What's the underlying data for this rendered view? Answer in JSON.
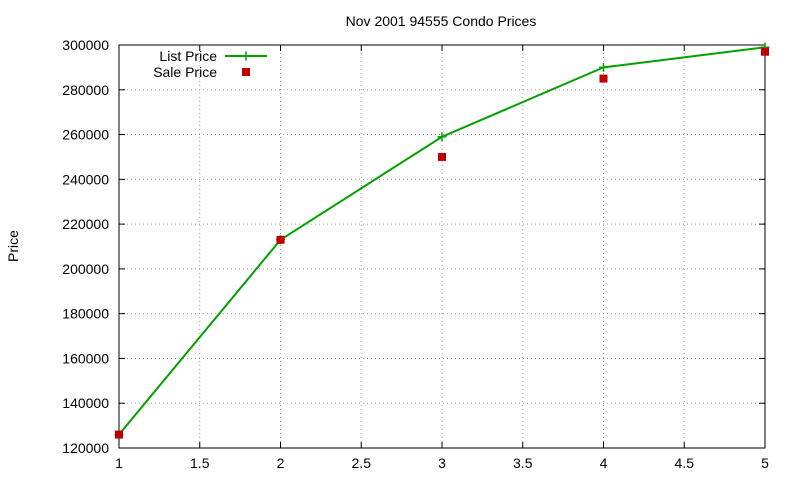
{
  "chart_data": {
    "type": "line",
    "title": "Nov 2001 94555 Condo Prices",
    "xlabel": "",
    "ylabel": "Price",
    "xlim": [
      1,
      5
    ],
    "ylim": [
      120000,
      300000
    ],
    "xticks": [
      1,
      1.5,
      2,
      2.5,
      3,
      3.5,
      4,
      4.5,
      5
    ],
    "xtick_labels": [
      "1",
      "1.5",
      "2",
      "2.5",
      "3",
      "3.5",
      "4",
      "4.5",
      "5"
    ],
    "yticks": [
      120000,
      140000,
      160000,
      180000,
      200000,
      220000,
      240000,
      260000,
      280000,
      300000
    ],
    "ytick_labels": [
      "120000",
      "140000",
      "160000",
      "180000",
      "200000",
      "220000",
      "240000",
      "260000",
      "280000",
      "300000"
    ],
    "grid": true,
    "legend_position": "top-left",
    "series": [
      {
        "name": "List Price",
        "style": "line-with-plus-markers",
        "color": "#00a000",
        "x": [
          1,
          2,
          3,
          4,
          5
        ],
        "values": [
          126000,
          213000,
          259000,
          290000,
          299000
        ]
      },
      {
        "name": "Sale Price",
        "style": "square-markers",
        "color": "#c00000",
        "x": [
          1,
          2,
          3,
          4,
          5
        ],
        "values": [
          126000,
          213000,
          250000,
          285000,
          297000
        ]
      }
    ]
  }
}
